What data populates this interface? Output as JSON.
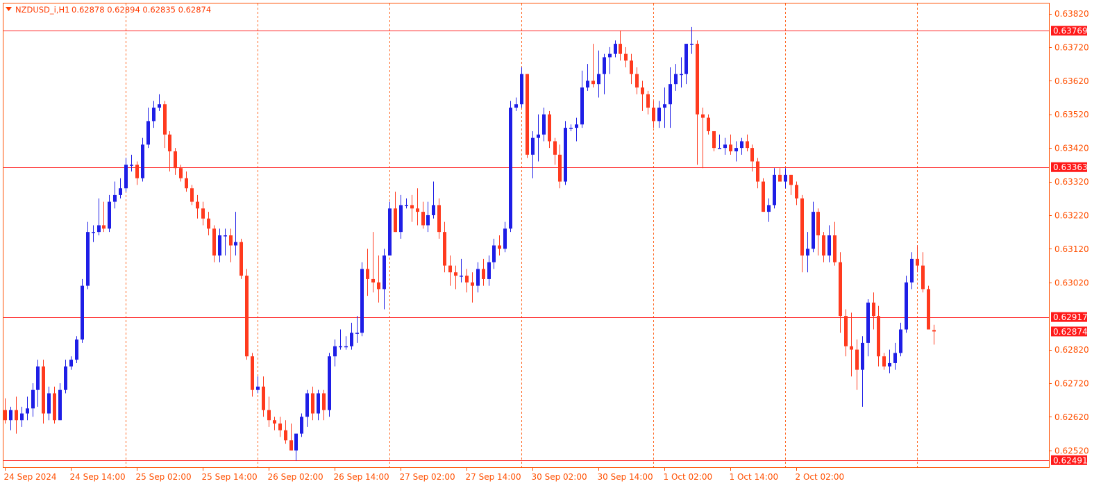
{
  "colors": {
    "background": "#ffffff",
    "frame": "#ff4f00",
    "grid": "#ff4f00",
    "bull": "#1e1ee6",
    "bear": "#ff3a1e",
    "hline": "#ff2020",
    "axis_text": "#ff4f00",
    "tag_bg": "#ff1a1a",
    "tag_text": "#ffffff",
    "header_text": "#ff3a00"
  },
  "header": {
    "arrow_icon": "triangle-down",
    "symbol": "NZDUSD_i,H1",
    "ohlc": "0.62878 0.62894 0.62835 0.62874"
  },
  "chart_data": {
    "type": "candlestick",
    "symbol": "NZDUSD_i",
    "timeframe": "H1",
    "ylim": [
      0.6247,
      0.6385
    ],
    "y_ticks": [
      "0.63820",
      "0.63720",
      "0.63620",
      "0.63520",
      "0.63420",
      "0.63320",
      "0.63220",
      "0.63120",
      "0.63020",
      "0.62820",
      "0.62720",
      "0.62620",
      "0.62520"
    ],
    "x_ticks": [
      "24 Sep 2024",
      "24 Sep 14:00",
      "25 Sep 02:00",
      "25 Sep 14:00",
      "26 Sep 02:00",
      "26 Sep 14:00",
      "27 Sep 02:00",
      "27 Sep 14:00",
      "30 Sep 02:00",
      "30 Sep 14:00",
      "1 Oct 02:00",
      "1 Oct 14:00",
      "2 Oct 02:00"
    ],
    "x_tick_bars": [
      0,
      12,
      24,
      36,
      48,
      60,
      72,
      84,
      96,
      108,
      120,
      132,
      144
    ],
    "day_separator_bars": [
      22,
      46,
      70,
      94,
      118,
      142,
      166
    ],
    "horizontal_lines": [
      {
        "price": 0.63769,
        "label": "0.63769"
      },
      {
        "price": 0.63363,
        "label": "0.63363"
      },
      {
        "price": 0.62917,
        "label": "0.62917"
      },
      {
        "price": 0.62491,
        "label": "0.62491"
      }
    ],
    "current_price": {
      "price": 0.62874,
      "label": "0.62874"
    },
    "candles": [
      [
        0.6264,
        0.62675,
        0.626,
        0.6261
      ],
      [
        0.6261,
        0.6265,
        0.6258,
        0.6264
      ],
      [
        0.6264,
        0.6268,
        0.6257,
        0.6261
      ],
      [
        0.6261,
        0.6265,
        0.6259,
        0.6263
      ],
      [
        0.6263,
        0.6268,
        0.6261,
        0.62645
      ],
      [
        0.62645,
        0.6272,
        0.6262,
        0.627
      ],
      [
        0.627,
        0.6279,
        0.6265,
        0.6277
      ],
      [
        0.6277,
        0.6279,
        0.626,
        0.6263
      ],
      [
        0.6263,
        0.6271,
        0.6261,
        0.6269
      ],
      [
        0.6269,
        0.6271,
        0.626,
        0.6261
      ],
      [
        0.6261,
        0.6272,
        0.6261,
        0.627
      ],
      [
        0.627,
        0.6279,
        0.6269,
        0.6277
      ],
      [
        0.6277,
        0.628,
        0.6276,
        0.6279
      ],
      [
        0.6279,
        0.6286,
        0.6278,
        0.6285
      ],
      [
        0.6285,
        0.6303,
        0.6284,
        0.6301
      ],
      [
        0.6301,
        0.632,
        0.63,
        0.6317
      ],
      [
        0.6317,
        0.6319,
        0.6314,
        0.6317
      ],
      [
        0.6317,
        0.6327,
        0.6316,
        0.6319
      ],
      [
        0.6319,
        0.6326,
        0.6317,
        0.6318
      ],
      [
        0.6318,
        0.6328,
        0.6317,
        0.6326
      ],
      [
        0.6326,
        0.6332,
        0.6324,
        0.6328
      ],
      [
        0.6328,
        0.6333,
        0.6327,
        0.633
      ],
      [
        0.633,
        0.6339,
        0.6329,
        0.6337
      ],
      [
        0.6337,
        0.634,
        0.6335,
        0.6337
      ],
      [
        0.6337,
        0.6338,
        0.6331,
        0.6333
      ],
      [
        0.6333,
        0.6345,
        0.6332,
        0.6343
      ],
      [
        0.6343,
        0.6354,
        0.6342,
        0.635
      ],
      [
        0.635,
        0.6356,
        0.6348,
        0.6354
      ],
      [
        0.6354,
        0.6358,
        0.6353,
        0.6355
      ],
      [
        0.6355,
        0.6356,
        0.6342,
        0.6346
      ],
      [
        0.6346,
        0.6347,
        0.6335,
        0.6341
      ],
      [
        0.6341,
        0.6342,
        0.6334,
        0.6336
      ],
      [
        0.6336,
        0.6337,
        0.6332,
        0.6333
      ],
      [
        0.6333,
        0.6335,
        0.6329,
        0.633
      ],
      [
        0.633,
        0.6331,
        0.6325,
        0.6326
      ],
      [
        0.6326,
        0.6328,
        0.6321,
        0.6324
      ],
      [
        0.6324,
        0.6326,
        0.6319,
        0.6321
      ],
      [
        0.6321,
        0.6323,
        0.6316,
        0.6318
      ],
      [
        0.6318,
        0.6319,
        0.6308,
        0.631
      ],
      [
        0.631,
        0.6318,
        0.6308,
        0.6316
      ],
      [
        0.6316,
        0.6318,
        0.631,
        0.6316
      ],
      [
        0.6316,
        0.6318,
        0.6308,
        0.6313
      ],
      [
        0.6313,
        0.6323,
        0.631,
        0.6314
      ],
      [
        0.6314,
        0.6315,
        0.6303,
        0.6304
      ],
      [
        0.6304,
        0.6306,
        0.6279,
        0.628
      ],
      [
        0.628,
        0.6281,
        0.6268,
        0.627
      ],
      [
        0.627,
        0.6274,
        0.6269,
        0.6271
      ],
      [
        0.6271,
        0.6274,
        0.6262,
        0.6264
      ],
      [
        0.6264,
        0.6268,
        0.6259,
        0.6261
      ],
      [
        0.6261,
        0.6262,
        0.6258,
        0.626
      ],
      [
        0.626,
        0.6262,
        0.6256,
        0.6258
      ],
      [
        0.6258,
        0.6261,
        0.6254,
        0.6255
      ],
      [
        0.6255,
        0.626,
        0.6252,
        0.6252
      ],
      [
        0.6252,
        0.6257,
        0.6249,
        0.6257
      ],
      [
        0.6257,
        0.6263,
        0.6256,
        0.6262
      ],
      [
        0.6262,
        0.627,
        0.6259,
        0.6269
      ],
      [
        0.6269,
        0.6271,
        0.6261,
        0.6263
      ],
      [
        0.6263,
        0.627,
        0.6261,
        0.6269
      ],
      [
        0.6269,
        0.627,
        0.6261,
        0.6264
      ],
      [
        0.6264,
        0.6281,
        0.6262,
        0.628
      ],
      [
        0.628,
        0.6285,
        0.6277,
        0.6283
      ],
      [
        0.6283,
        0.6288,
        0.6282,
        0.6283
      ],
      [
        0.6283,
        0.6286,
        0.6282,
        0.6283
      ],
      [
        0.6283,
        0.629,
        0.6282,
        0.6287
      ],
      [
        0.6287,
        0.6292,
        0.6284,
        0.6287
      ],
      [
        0.6287,
        0.6308,
        0.6286,
        0.6306
      ],
      [
        0.6306,
        0.6312,
        0.6298,
        0.6303
      ],
      [
        0.6303,
        0.6317,
        0.6299,
        0.6302
      ],
      [
        0.6302,
        0.631,
        0.6296,
        0.63
      ],
      [
        0.63,
        0.6312,
        0.6294,
        0.631
      ],
      [
        0.631,
        0.6326,
        0.631,
        0.6324
      ],
      [
        0.6324,
        0.6329,
        0.6317,
        0.6317
      ],
      [
        0.6317,
        0.6328,
        0.6315,
        0.6325
      ],
      [
        0.6325,
        0.6327,
        0.6324,
        0.6325
      ],
      [
        0.6325,
        0.6328,
        0.632,
        0.6324
      ],
      [
        0.6324,
        0.633,
        0.6319,
        0.6323
      ],
      [
        0.6323,
        0.6326,
        0.6318,
        0.6319
      ],
      [
        0.6319,
        0.6326,
        0.6317,
        0.6322
      ],
      [
        0.6322,
        0.6332,
        0.6321,
        0.6325
      ],
      [
        0.6325,
        0.6327,
        0.6315,
        0.6317
      ],
      [
        0.6317,
        0.632,
        0.6305,
        0.6307
      ],
      [
        0.6307,
        0.631,
        0.6301,
        0.6305
      ],
      [
        0.6305,
        0.6307,
        0.63,
        0.6304
      ],
      [
        0.6304,
        0.6309,
        0.6302,
        0.6304
      ],
      [
        0.6304,
        0.6306,
        0.6299,
        0.6302
      ],
      [
        0.6302,
        0.6305,
        0.6296,
        0.6301
      ],
      [
        0.6301,
        0.6308,
        0.6299,
        0.6306
      ],
      [
        0.6306,
        0.6309,
        0.6301,
        0.6303
      ],
      [
        0.6303,
        0.631,
        0.6301,
        0.6308
      ],
      [
        0.6308,
        0.6315,
        0.6306,
        0.6313
      ],
      [
        0.6313,
        0.6316,
        0.631,
        0.6312
      ],
      [
        0.6312,
        0.632,
        0.6311,
        0.6318
      ],
      [
        0.6318,
        0.6356,
        0.6317,
        0.6354
      ],
      [
        0.6354,
        0.6357,
        0.6353,
        0.6355
      ],
      [
        0.6355,
        0.6366,
        0.6354,
        0.6364
      ],
      [
        0.6364,
        0.6364,
        0.6339,
        0.634
      ],
      [
        0.634,
        0.6347,
        0.6333,
        0.6345
      ],
      [
        0.6345,
        0.6352,
        0.6338,
        0.6346
      ],
      [
        0.6346,
        0.6354,
        0.6344,
        0.6352
      ],
      [
        0.6352,
        0.6353,
        0.6342,
        0.6344
      ],
      [
        0.6344,
        0.6345,
        0.6337,
        0.634
      ],
      [
        0.634,
        0.6343,
        0.633,
        0.6332
      ],
      [
        0.6332,
        0.635,
        0.6331,
        0.6348
      ],
      [
        0.6348,
        0.6349,
        0.6347,
        0.6348
      ],
      [
        0.6348,
        0.6351,
        0.6344,
        0.6349
      ],
      [
        0.6349,
        0.6365,
        0.6348,
        0.636
      ],
      [
        0.636,
        0.6367,
        0.6359,
        0.6362
      ],
      [
        0.6362,
        0.6373,
        0.636,
        0.6361
      ],
      [
        0.6361,
        0.6371,
        0.6357,
        0.6364
      ],
      [
        0.6364,
        0.637,
        0.6358,
        0.6369
      ],
      [
        0.6369,
        0.6372,
        0.6364,
        0.637
      ],
      [
        0.637,
        0.6374,
        0.6369,
        0.6373
      ],
      [
        0.6373,
        0.6377,
        0.6368,
        0.637
      ],
      [
        0.637,
        0.6372,
        0.6366,
        0.6368
      ],
      [
        0.6368,
        0.637,
        0.6361,
        0.6364
      ],
      [
        0.6364,
        0.6366,
        0.6358,
        0.636
      ],
      [
        0.636,
        0.6362,
        0.6353,
        0.6358
      ],
      [
        0.6358,
        0.6359,
        0.6352,
        0.6354
      ],
      [
        0.6354,
        0.6356,
        0.6348,
        0.635
      ],
      [
        0.635,
        0.6356,
        0.6348,
        0.6354
      ],
      [
        0.6354,
        0.636,
        0.6348,
        0.6355
      ],
      [
        0.6355,
        0.6366,
        0.6348,
        0.6361
      ],
      [
        0.6361,
        0.6367,
        0.6359,
        0.6364
      ],
      [
        0.6364,
        0.6369,
        0.636,
        0.6364
      ],
      [
        0.6364,
        0.6373,
        0.6361,
        0.6373
      ],
      [
        0.6373,
        0.6378,
        0.637,
        0.6373
      ],
      [
        0.6373,
        0.6374,
        0.6337,
        0.6352
      ],
      [
        0.6352,
        0.6354,
        0.6336,
        0.6351
      ],
      [
        0.6351,
        0.6352,
        0.6346,
        0.6347
      ],
      [
        0.6347,
        0.6347,
        0.6341,
        0.6342
      ],
      [
        0.6342,
        0.6346,
        0.6342,
        0.6342
      ],
      [
        0.6342,
        0.6345,
        0.634,
        0.6343
      ],
      [
        0.6343,
        0.6346,
        0.634,
        0.6341
      ],
      [
        0.6341,
        0.6344,
        0.6338,
        0.6342
      ],
      [
        0.6342,
        0.6345,
        0.634,
        0.6344
      ],
      [
        0.6344,
        0.6346,
        0.6341,
        0.6342
      ],
      [
        0.6342,
        0.6343,
        0.6335,
        0.6338
      ],
      [
        0.6338,
        0.6339,
        0.633,
        0.6332
      ],
      [
        0.6332,
        0.6333,
        0.6323,
        0.6323
      ],
      [
        0.6323,
        0.6327,
        0.632,
        0.6325
      ],
      [
        0.6325,
        0.6336,
        0.6324,
        0.6334
      ],
      [
        0.6334,
        0.6336,
        0.6332,
        0.6332
      ],
      [
        0.6332,
        0.6336,
        0.633,
        0.6334
      ],
      [
        0.6334,
        0.6334,
        0.6328,
        0.6331
      ],
      [
        0.6331,
        0.6332,
        0.6325,
        0.6327
      ],
      [
        0.6327,
        0.6328,
        0.6305,
        0.631
      ],
      [
        0.631,
        0.6317,
        0.6305,
        0.6312
      ],
      [
        0.6312,
        0.6326,
        0.6311,
        0.6323
      ],
      [
        0.6323,
        0.6324,
        0.631,
        0.6316
      ],
      [
        0.6316,
        0.6317,
        0.6308,
        0.631
      ],
      [
        0.631,
        0.6319,
        0.6308,
        0.6316
      ],
      [
        0.6316,
        0.632,
        0.6307,
        0.6308
      ],
      [
        0.6308,
        0.6311,
        0.6287,
        0.6292
      ],
      [
        0.6292,
        0.6294,
        0.628,
        0.6283
      ],
      [
        0.6283,
        0.6293,
        0.6274,
        0.6282
      ],
      [
        0.6282,
        0.6285,
        0.627,
        0.6276
      ],
      [
        0.6276,
        0.6286,
        0.6265,
        0.6284
      ],
      [
        0.6284,
        0.6297,
        0.628,
        0.6296
      ],
      [
        0.6296,
        0.6299,
        0.6288,
        0.6292
      ],
      [
        0.6292,
        0.6295,
        0.6277,
        0.628
      ],
      [
        0.628,
        0.6281,
        0.6276,
        0.6277
      ],
      [
        0.6277,
        0.6282,
        0.6275,
        0.6278
      ],
      [
        0.6278,
        0.6284,
        0.6276,
        0.6281
      ],
      [
        0.6281,
        0.629,
        0.628,
        0.6288
      ],
      [
        0.6288,
        0.6304,
        0.6287,
        0.6302
      ],
      [
        0.6302,
        0.6311,
        0.63,
        0.6309
      ],
      [
        0.6309,
        0.6313,
        0.6305,
        0.6307
      ],
      [
        0.6307,
        0.6311,
        0.6299,
        0.63
      ],
      [
        0.63,
        0.6301,
        0.6289,
        0.6288
      ],
      [
        0.62878,
        0.62894,
        0.62835,
        0.62874
      ]
    ]
  }
}
